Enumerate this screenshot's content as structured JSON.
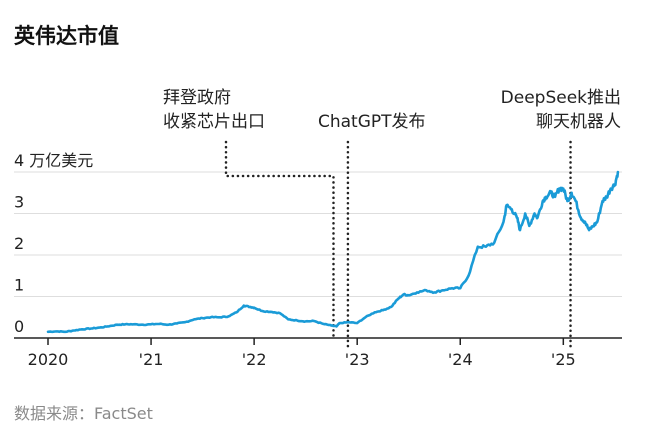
{
  "title": "英伟达市值",
  "source": "数据来源：FactSet",
  "chart_data": {
    "type": "line",
    "title": "英伟达市值",
    "y_unit_label": "4 万亿美元",
    "y_ticks": [
      "0",
      "1",
      "2",
      "3"
    ],
    "x_ticks": [
      "2020",
      "'21",
      "'22",
      "'23",
      "'24",
      "'25"
    ],
    "ylim": [
      0,
      4.2
    ],
    "xlim": [
      2020.0,
      2025.55
    ],
    "grid": true,
    "line_color": "#1a9bd7",
    "series": [
      {
        "x": [
          2020.0,
          2020.08,
          2020.17,
          2020.25,
          2020.33,
          2020.42,
          2020.5,
          2020.58,
          2020.67,
          2020.75,
          2020.83,
          2020.92,
          2021.0,
          2021.08,
          2021.17,
          2021.25,
          2021.33,
          2021.42,
          2021.5,
          2021.58,
          2021.67,
          2021.75,
          2021.83,
          2021.9,
          2021.96,
          2022.0,
          2022.08,
          2022.17,
          2022.25,
          2022.33,
          2022.42,
          2022.5,
          2022.58,
          2022.67,
          2022.75,
          2022.8,
          2022.83,
          2022.92,
          2023.0,
          2023.08,
          2023.17,
          2023.25,
          2023.33,
          2023.4,
          2023.45,
          2023.5,
          2023.58,
          2023.67,
          2023.75,
          2023.83,
          2023.92,
          2024.0,
          2024.08,
          2024.17,
          2024.25,
          2024.33,
          2024.42,
          2024.45,
          2024.5,
          2024.55,
          2024.58,
          2024.63,
          2024.67,
          2024.72,
          2024.75,
          2024.8,
          2024.83,
          2024.88,
          2024.92,
          2024.96,
          2025.0,
          2025.04,
          2025.08,
          2025.12,
          2025.17,
          2025.21,
          2025.25,
          2025.29,
          2025.33,
          2025.38,
          2025.42,
          2025.46,
          2025.5,
          2025.53
        ],
        "values": [
          0.15,
          0.16,
          0.15,
          0.18,
          0.21,
          0.23,
          0.25,
          0.28,
          0.32,
          0.33,
          0.33,
          0.32,
          0.33,
          0.34,
          0.32,
          0.35,
          0.38,
          0.45,
          0.48,
          0.5,
          0.5,
          0.52,
          0.62,
          0.78,
          0.75,
          0.73,
          0.65,
          0.63,
          0.6,
          0.45,
          0.42,
          0.4,
          0.41,
          0.34,
          0.3,
          0.28,
          0.36,
          0.38,
          0.36,
          0.5,
          0.62,
          0.67,
          0.75,
          0.95,
          1.05,
          1.03,
          1.1,
          1.15,
          1.1,
          1.15,
          1.2,
          1.2,
          1.5,
          2.2,
          2.2,
          2.3,
          2.8,
          3.2,
          3.1,
          2.9,
          2.6,
          3.0,
          2.7,
          3.0,
          2.9,
          3.3,
          3.4,
          3.5,
          3.4,
          3.6,
          3.6,
          3.3,
          3.5,
          3.3,
          2.9,
          2.8,
          2.6,
          2.7,
          2.8,
          3.3,
          3.4,
          3.6,
          3.7,
          4.0
        ]
      }
    ],
    "annotations": [
      {
        "lines": [
          "拜登政府",
          "收紧芯片出口"
        ],
        "x": 2022.77
      },
      {
        "lines": [
          "ChatGPT发布"
        ],
        "x": 2022.91
      },
      {
        "lines": [
          "DeepSeek推出",
          "聊天机器人"
        ],
        "x": 2025.07
      }
    ]
  }
}
